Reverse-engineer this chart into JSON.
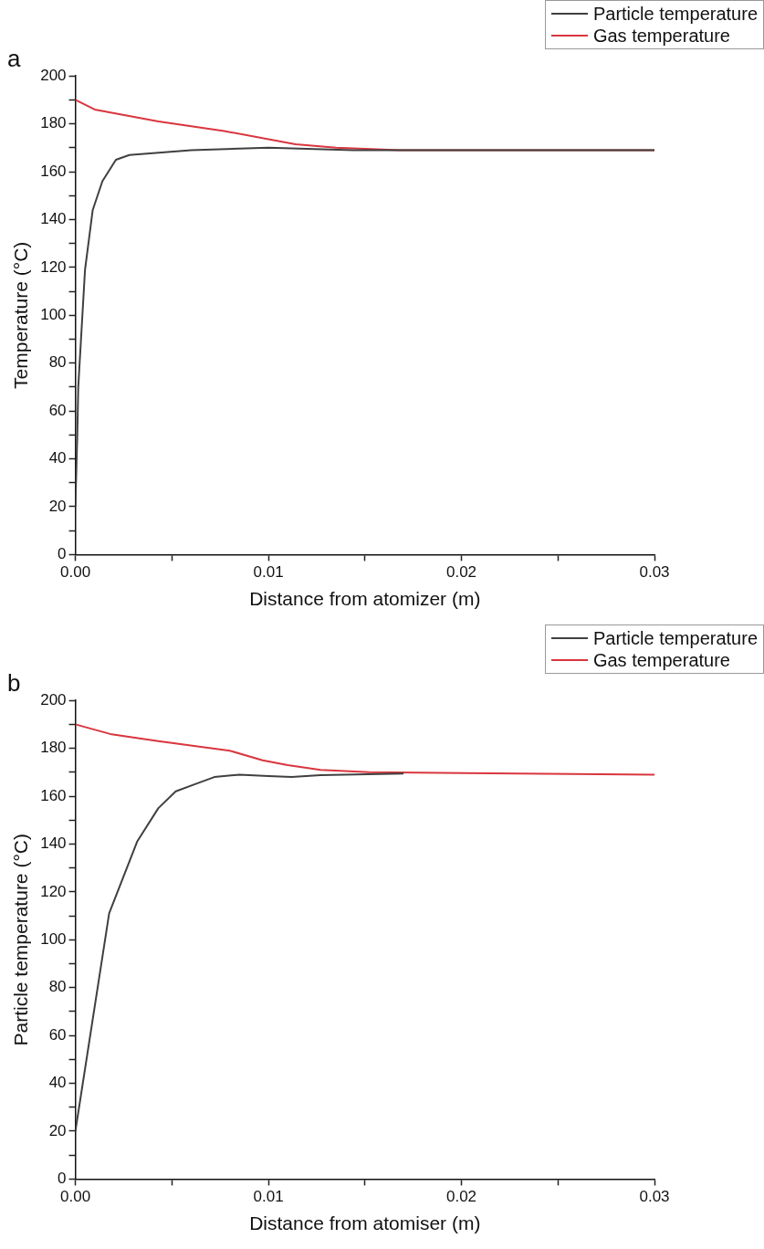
{
  "chart_data": [
    {
      "type": "line",
      "title": "a",
      "xlabel": "Distance from atomizer (m)",
      "ylabel": "Temperature (°C)",
      "legend": "top right",
      "grid": false,
      "marker": "none",
      "line_style": "solid",
      "xlim": [
        0,
        0.03
      ],
      "ylim": [
        0,
        200
      ],
      "xticks": [
        {
          "value": 0,
          "label": "0.00"
        },
        {
          "value": 0.005,
          "label": null
        },
        {
          "value": 0.01,
          "label": "0.01"
        },
        {
          "value": 0.015,
          "label": null
        },
        {
          "value": 0.02,
          "label": "0.02"
        },
        {
          "value": 0.025,
          "label": null
        },
        {
          "value": 0.03,
          "label": "0.03"
        }
      ],
      "yticks": [
        0,
        {
          "value": 10,
          "label": null
        },
        20,
        {
          "value": 30,
          "label": null
        },
        40,
        {
          "value": 50,
          "label": null
        },
        60,
        {
          "value": 70,
          "label": null
        },
        80,
        {
          "value": 90,
          "label": null
        },
        100,
        {
          "value": 110,
          "label": null
        },
        120,
        {
          "value": 130,
          "label": null
        },
        140,
        {
          "value": 150,
          "label": null
        },
        160,
        {
          "value": 170,
          "label": null
        },
        180,
        {
          "value": 190,
          "label": null
        },
        200
      ],
      "series": [
        {
          "name": "Particle temperature",
          "color": "#404040",
          "x": [
            0,
            0.0001,
            0.00015,
            0.0005,
            0.0009,
            0.0014,
            0.0021,
            0.0028,
            0.006,
            0.01,
            0.0144,
            0.03
          ],
          "values": [
            20,
            50,
            70,
            119,
            144,
            156,
            165,
            167,
            169,
            170,
            169,
            169
          ]
        },
        {
          "name": "Gas temperature",
          "color": "#d9363e",
          "x": [
            0,
            0.001,
            0.0043,
            0.0077,
            0.0114,
            0.0135,
            0.0168,
            0.03
          ],
          "values": [
            190,
            186,
            181,
            177,
            171.5,
            170,
            169,
            169
          ]
        }
      ]
    },
    {
      "type": "line",
      "title": "b",
      "xlabel": "Distance from atomiser (m)",
      "ylabel": "Particle temperature (°C)",
      "legend": "top right",
      "grid": false,
      "marker": "none",
      "line_style": "solid",
      "xlim": [
        0,
        0.03
      ],
      "ylim": [
        0,
        200
      ],
      "xticks": [
        {
          "value": 0,
          "label": "0.00"
        },
        {
          "value": 0.005,
          "label": null
        },
        {
          "value": 0.01,
          "label": "0.01"
        },
        {
          "value": 0.015,
          "label": null
        },
        {
          "value": 0.02,
          "label": "0.02"
        },
        {
          "value": 0.025,
          "label": null
        },
        {
          "value": 0.03,
          "label": "0.03"
        }
      ],
      "yticks": [
        0,
        {
          "value": 10,
          "label": null
        },
        20,
        {
          "value": 30,
          "label": null
        },
        40,
        {
          "value": 50,
          "label": null
        },
        60,
        {
          "value": 70,
          "label": null
        },
        80,
        {
          "value": 90,
          "label": null
        },
        100,
        {
          "value": 110,
          "label": null
        },
        120,
        {
          "value": 130,
          "label": null
        },
        140,
        {
          "value": 150,
          "label": null
        },
        160,
        {
          "value": 170,
          "label": null
        },
        180,
        {
          "value": 190,
          "label": null
        },
        200
      ],
      "series": [
        {
          "name": "Particle temperature",
          "color": "#404040",
          "x": [
            0,
            0.00175,
            0.0032,
            0.0043,
            0.0052,
            0.0062,
            0.0072,
            0.0085,
            0.01,
            0.0112,
            0.0127,
            0.017
          ],
          "values": [
            20,
            111,
            141,
            155,
            162,
            165,
            168,
            169,
            168.4,
            168,
            168.8,
            169.5
          ]
        },
        {
          "name": "Gas temperature",
          "color": "#d9363e",
          "x": [
            0,
            0.0018,
            0.0043,
            0.008,
            0.0097,
            0.011,
            0.0127,
            0.0152,
            0.03
          ],
          "values": [
            190,
            186,
            183,
            179,
            175,
            173,
            171,
            170,
            169
          ]
        }
      ]
    }
  ]
}
